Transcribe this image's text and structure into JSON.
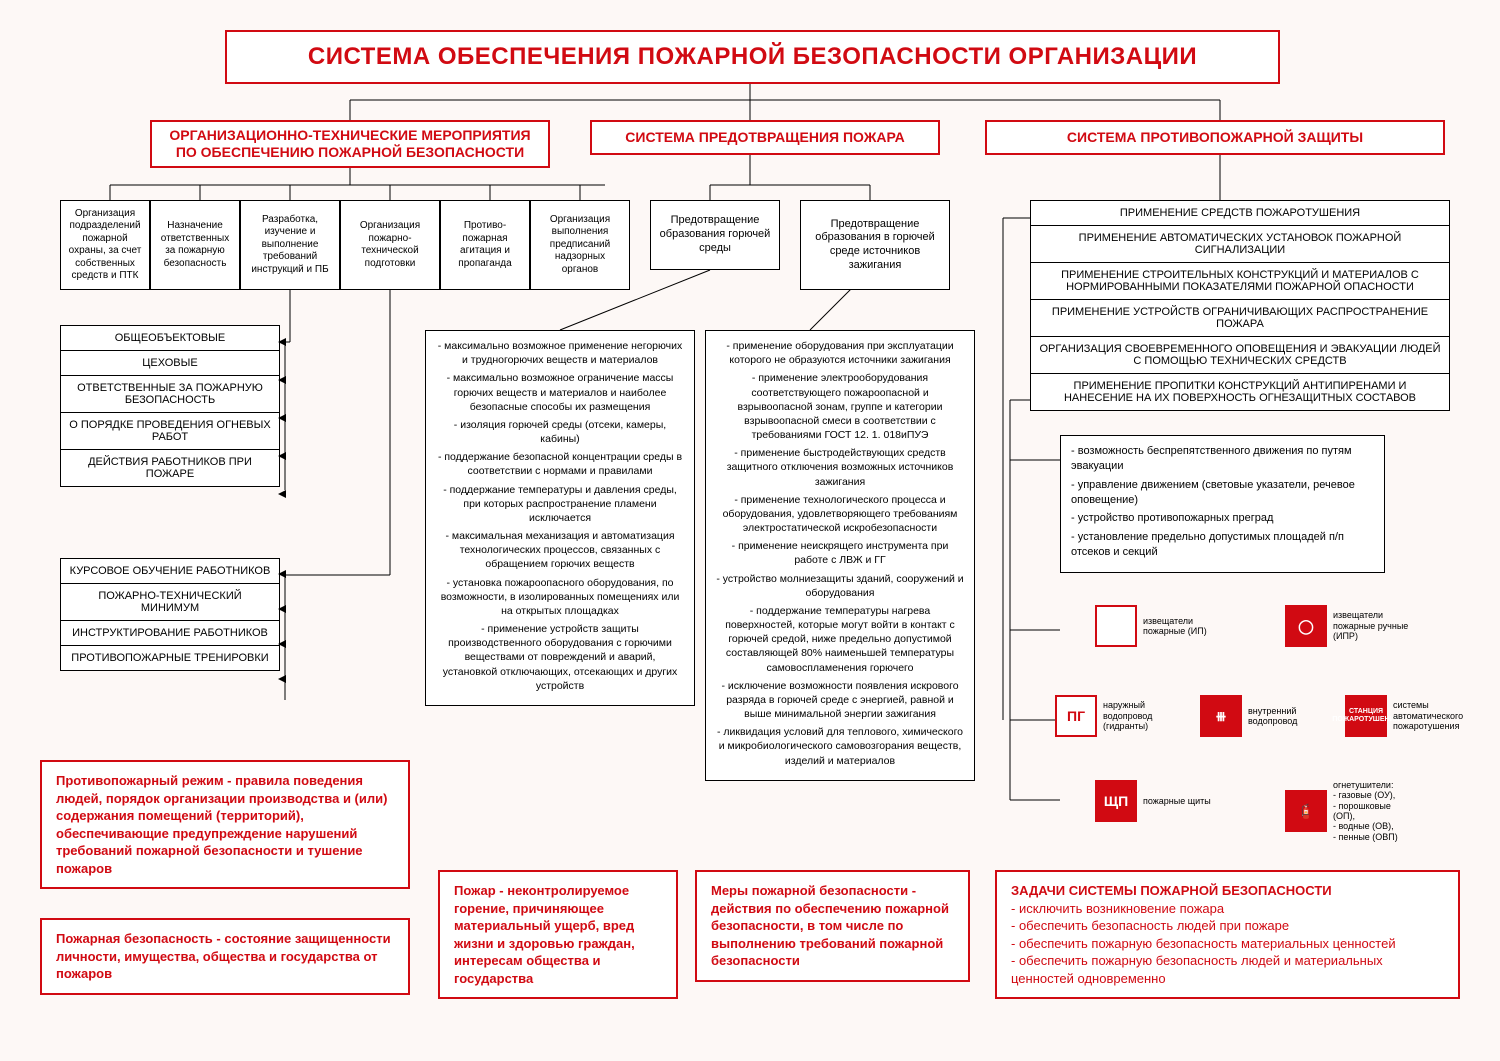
{
  "colors": {
    "red": "#d10a12",
    "black": "#000000",
    "bg": "#fdf8f6"
  },
  "title": "СИСТЕМА ОБЕСПЕЧЕНИЯ ПОЖАРНОЙ БЕЗОПАСНОСТИ ОРГАНИЗАЦИИ",
  "branch1": {
    "title": "ОРГАНИЗАЦИОННО-ТЕХНИЧЕСКИЕ МЕРОПРИЯТИЯ ПО ОБЕСПЕЧЕНИЮ ПОЖАРНОЙ БЕЗОПАСНОСТИ",
    "children": [
      "Организация подразделений пожарной охраны, за счет собственных средств и ПТК",
      "Назначение ответственных за пожарную безопасность",
      "Разработка, изучение и выполнение требований инструкций и ПБ",
      "Организация пожарно-технической подготовки",
      "Противо-пожарная агитация и пропаганда",
      "Организация выполнения предписаний надзорных органов"
    ],
    "stack1": [
      "ОБЩЕОБЪЕКТОВЫЕ",
      "ЦЕХОВЫЕ",
      "ОТВЕТСТВЕННЫЕ ЗА ПОЖАРНУЮ БЕЗОПАСНОСТЬ",
      "О ПОРЯДКЕ ПРОВЕДЕНИЯ ОГНЕВЫХ РАБОТ",
      "ДЕЙСТВИЯ РАБОТНИКОВ ПРИ ПОЖАРЕ"
    ],
    "stack2": [
      "КУРСОВОЕ ОБУЧЕНИЕ РАБОТНИКОВ",
      "ПОЖАРНО-ТЕХНИЧЕСКИЙ МИНИМУМ",
      "ИНСТРУКТИРОВАНИЕ РАБОТНИКОВ",
      "ПРОТИВОПОЖАРНЫЕ ТРЕНИРОВКИ"
    ]
  },
  "branch2": {
    "title": "СИСТЕМА ПРЕДОТВРАЩЕНИЯ ПОЖАРА",
    "col1": {
      "header": "Предотвращение образования горючей среды",
      "items": [
        "- максимально возможное применение негорючих и трудногорючих веществ и материалов",
        "- максимально возможное ограничение массы горючих веществ и материалов и наиболее безопасные способы их размещения",
        "- изоляция горючей среды (отсеки, камеры, кабины)",
        "- поддержание безопасной концентрации среды в соответствии с нормами и правилами",
        "- поддержание температуры и давления среды, при которых распространение пламени исключается",
        "- максимальная механизация и автоматизация технологических процессов, связанных с обращением горючих веществ",
        "- установка пожароопасного оборудования, по возможности, в изолированных помещениях или на открытых площадках",
        "- применение устройств защиты производственного оборудования с горючими веществами от повреждений и аварий, установкой отключающих, отсекающих и других устройств"
      ]
    },
    "col2": {
      "header": "Предотвращение образования в горючей среде источников зажигания",
      "items": [
        "- применение оборудования при эксплуатации которого не образуются источники зажигания",
        "- применение электрооборудования соответствующего пожароопасной и взрывоопасной зонам, группе и категории взрывоопасной смеси в соответствии с требованиями ГОСТ 12. 1. 018иПУЭ",
        "- применение быстродействующих средств защитного отключения возможных источников зажигания",
        "- применение технологического процесса и оборудования, удовлетворяющего требованиям электростатической искробезопасности",
        "- применение неискрящего инструмента при работе с ЛВЖ и ГГ",
        "- устройство молниезащиты зданий, сооружений и оборудования",
        "- поддержание температуры нагрева поверхностей, которые могут войти в контакт с горючей средой, ниже предельно допустимой составляющей 80% наименьшей температуры самовоспламенения горючего",
        "- исключение возможности появления искрового разряда в горючей среде с энергией, равной и выше минимальной энергии зажигания",
        "- ликвидация условий для теплового, химического и микробиологического самовозгорания веществ, изделий и материалов"
      ]
    }
  },
  "branch3": {
    "title": "СИСТЕМА ПРОТИВОПОЖАРНОЙ ЗАЩИТЫ",
    "stack": [
      "ПРИМЕНЕНИЕ СРЕДСТВ ПОЖАРОТУШЕНИЯ",
      "ПРИМЕНЕНИЕ АВТОМАТИЧЕСКИХ УСТАНОВОК ПОЖАРНОЙ СИГНАЛИЗАЦИИ",
      "ПРИМЕНЕНИЕ СТРОИТЕЛЬНЫХ КОНСТРУКЦИЙ И МАТЕРИАЛОВ С НОРМИРОВАННЫМИ ПОКАЗАТЕЛЯМИ ПОЖАРНОЙ ОПАСНОСТИ",
      "ПРИМЕНЕНИЕ УСТРОЙСТВ ОГРАНИЧИВАЮЩИХ РАСПРОСТРАНЕНИЕ ПОЖАРА",
      "ОРГАНИЗАЦИЯ СВОЕВРЕМЕННОГО ОПОВЕЩЕНИЯ И ЭВАКУАЦИИ ЛЮДЕЙ С ПОМОЩЬЮ ТЕХНИЧЕСКИХ СРЕДСТВ",
      "ПРИМЕНЕНИЕ ПРОПИТКИ КОНСТРУКЦИЙ АНТИПИРЕНАМИ И НАНЕСЕНИЕ НА ИХ ПОВЕРХНОСТЬ ОГНЕЗАЩИТНЫХ СОСТАВОВ"
    ],
    "detail": [
      "- возможность беспрепятственного движения по путям эвакуации",
      "- управление движением (световые указатели, речевое оповещение)",
      "- устройство противопожарных преград",
      "- установление предельно допустимых площадей п/п отсеков и секций"
    ],
    "icons_row1": [
      {
        "glyph": "",
        "label": "извещатели пожарные (ИП)",
        "filled": false,
        "name": "detector-ip-icon"
      },
      {
        "glyph": "◯",
        "label": "извещатели пожарные ручные (ИПР)",
        "filled": true,
        "name": "detector-ipr-icon"
      }
    ],
    "icons_row2": [
      {
        "glyph": "ПГ",
        "label": "наружный водопровод (гидранты)",
        "filled": false,
        "name": "hydrant-icon"
      },
      {
        "glyph": "⧻",
        "label": "внутренний водопровод",
        "filled": true,
        "name": "internal-water-icon"
      },
      {
        "glyph": "СТАНЦИЯ ПОЖАРОТУШЕНИЯ",
        "label": "системы автоматического пожаротушения",
        "filled": true,
        "name": "station-icon",
        "small": true
      }
    ],
    "icons_row3": [
      {
        "glyph": "ЩП",
        "label": "пожарные щиты",
        "filled": true,
        "name": "shield-icon"
      },
      {
        "glyph": "🧯",
        "label": "огнетушители:\n- газовые (ОУ),\n- порошковые (ОП),\n- водные (ОВ),\n- пенные (ОВП)",
        "filled": true,
        "name": "extinguisher-icon"
      }
    ]
  },
  "definitions": {
    "d1": "Противопожарный режим - правила поведения людей, порядок организации производства и (или) содержания помещений (территорий), обеспечивающие предупреждение нарушений требований пожарной безопасности и тушение пожаров",
    "d2": "Пожарная безопасность - состояние защищенности личности, имущества, общества и государства от пожаров",
    "d3": "Пожар - неконтролируемое горение, причиняющее материальный ущерб, вред жизни и здоровью граждан, интересам общества и государства",
    "d4": "Меры пожарной безопасности - действия по обеспечению пожарной безопасности, в том числе по выполнению требований пожарной безопасности",
    "d5_title": "ЗАДАЧИ СИСТЕМЫ ПОЖАРНОЙ БЕЗОПАСНОСТИ",
    "d5_items": [
      "- исключить возникновение пожара",
      "- обеспечить безопасность людей при пожаре",
      "- обеспечить пожарную безопасность материальных ценностей",
      "- обеспечить пожарную безопасность людей и материальных ценностей одновременно"
    ]
  }
}
